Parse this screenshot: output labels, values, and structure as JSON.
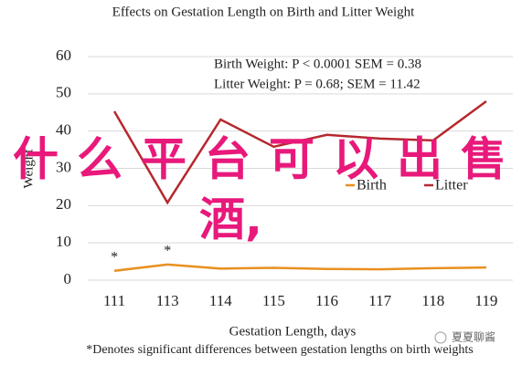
{
  "chart_data": {
    "type": "line",
    "title": "Effects on Gestation Length on Birth and Litter Weight",
    "x_label": "Gestation Length, days",
    "y_label": "Weight",
    "footnote": "*Denotes significant differences between gestation lengths on birth weights",
    "annotations": [
      "Birth Weight: P < 0.0001 SEM = 0.38",
      "Litter Weight: P = 0.68; SEM = 11.42"
    ],
    "markers": [
      {
        "x": "111",
        "text": "*"
      },
      {
        "x": "113",
        "text": "*"
      }
    ],
    "categories": [
      "111",
      "113",
      "114",
      "115",
      "116",
      "117",
      "118",
      "119"
    ],
    "series": [
      {
        "name": "Birth",
        "color": "#e8901f",
        "values": [
          2.5,
          4.2,
          3.1,
          3.3,
          3.0,
          2.9,
          3.2,
          3.4
        ]
      },
      {
        "name": "Litter",
        "color": "#b5282e",
        "values": [
          45.3,
          20.8,
          43.1,
          35.8,
          39.0,
          38.0,
          37.5,
          48.0
        ]
      }
    ],
    "ylim": [
      0,
      60
    ],
    "yticks": [
      0,
      10,
      20,
      30,
      40,
      50,
      60
    ],
    "grid": true
  },
  "overlay": {
    "lines": [
      "什么平台可以出售",
      "酒,"
    ],
    "watermark": "夏夏聊酱"
  }
}
